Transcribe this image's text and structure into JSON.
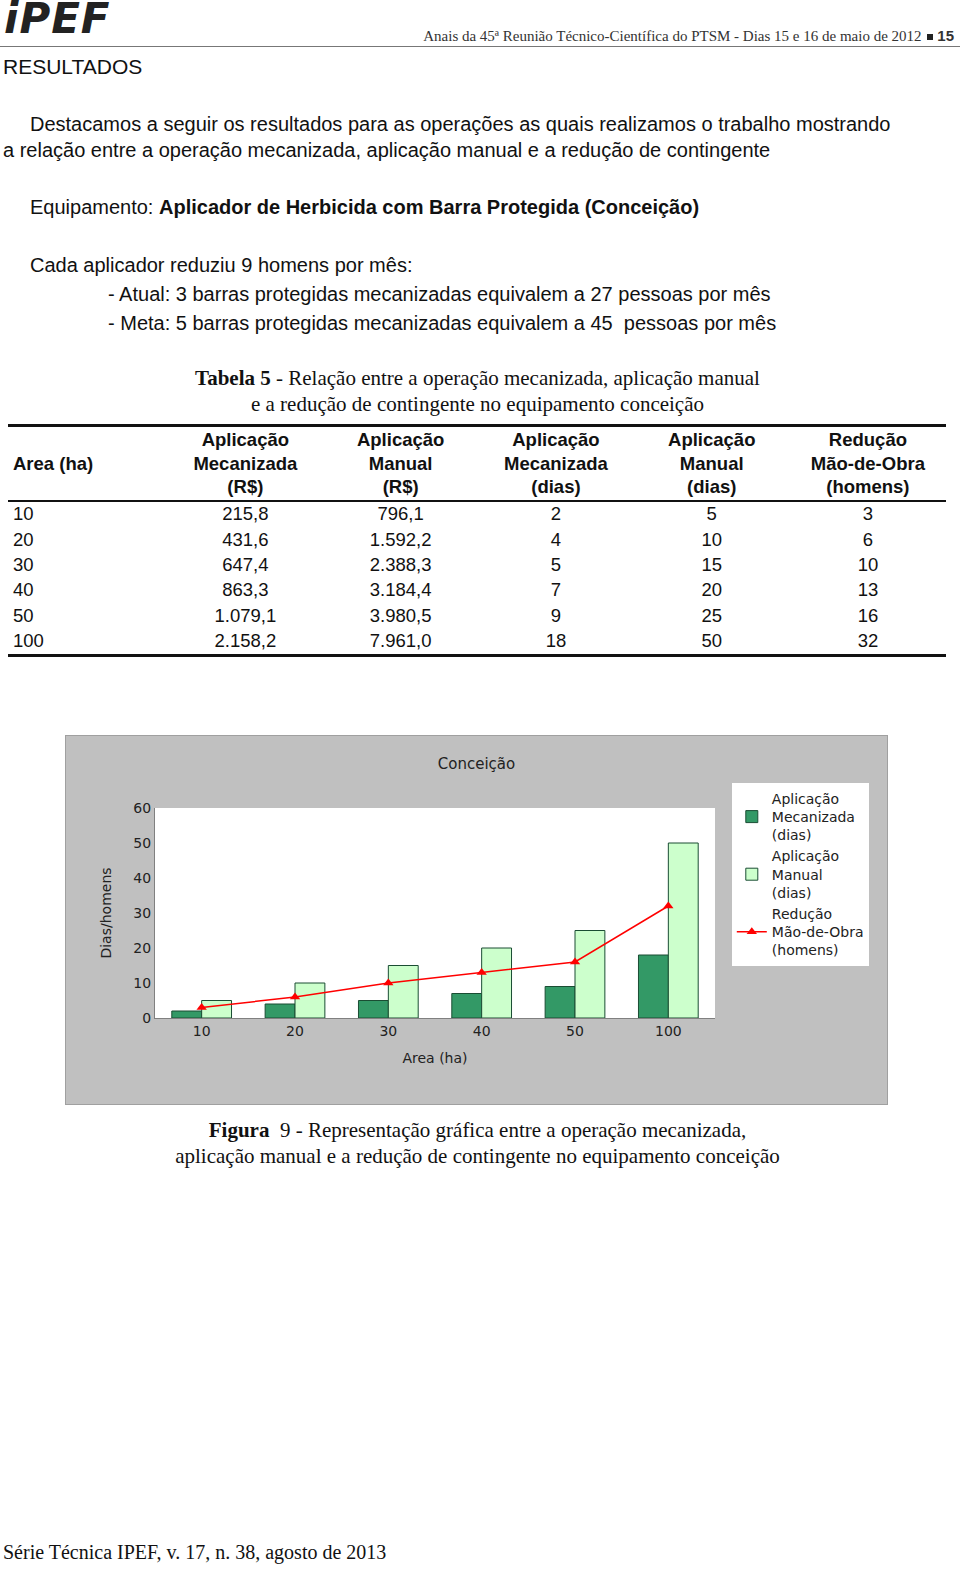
{
  "header": {
    "logo": "iPEF",
    "text": "Anais da 45ª Reunião Técnico-Científica do PTSM - Dias 15 e 16 de maio de 2012",
    "page": "15"
  },
  "section": "RESULTADOS",
  "intro": [
    "Destacamos a seguir os resultados para as operações as quais realizamos o trabalho mostrando",
    "a relação entre a operação mecanizada, aplicação manual e a redução de contingente"
  ],
  "equipment": {
    "label": "Equipamento:",
    "value": "Aplicador de Herbicida com Barra Protegida (Conceição)"
  },
  "summary": {
    "text": "Cada aplicador reduziu 9 homens por mês:",
    "items": [
      "- Atual: 3 barras protegidas mecanizadas equivalem a 27 pessoas por mês",
      "- Meta: 5 barras protegidas mecanizadas equivalem a 45  pessoas por mês"
    ]
  },
  "table": {
    "caption": {
      "label": "Tabela 5",
      "lines": [
        "- Relação entre a operação mecanizada, aplicação manual",
        "e a redução de contingente no equipamento conceição"
      ]
    },
    "header": [
      [
        "Area (ha)"
      ],
      [
        "Aplicação",
        "Mecanizada",
        "(R$)"
      ],
      [
        "Aplicação",
        "Manual",
        "(R$)"
      ],
      [
        "Aplicação",
        "Mecanizada",
        "(dias)"
      ],
      [
        "Aplicação",
        "Manual",
        "(dias)"
      ],
      [
        "Redução",
        "Mão-de-Obra",
        "(homens)"
      ]
    ],
    "rows": [
      [
        "10",
        "215,8",
        "796,1",
        "2",
        "5",
        "3"
      ],
      [
        "20",
        "431,6",
        "1.592,2",
        "4",
        "10",
        "6"
      ],
      [
        "30",
        "647,4",
        "2.388,3",
        "5",
        "15",
        "10"
      ],
      [
        "40",
        "863,3",
        "3.184,4",
        "7",
        "20",
        "13"
      ],
      [
        "50",
        "1.079,1",
        "3.980,5",
        "9",
        "25",
        "16"
      ],
      [
        "100",
        "2.158,2",
        "7.961,0",
        "18",
        "50",
        "32"
      ]
    ]
  },
  "chart_data": {
    "type": "bar",
    "title": "Conceição",
    "x_label": "Area (ha)",
    "y_label": "Dias/homens",
    "categories": [
      "10",
      "20",
      "30",
      "40",
      "50",
      "100"
    ],
    "series": [
      {
        "name": "Aplicação Mecanizada (dias)",
        "type": "bar",
        "color": "#339966",
        "values": [
          2,
          4,
          5,
          7,
          9,
          18
        ]
      },
      {
        "name": "Aplicação Manual (dias)",
        "type": "bar",
        "color": "#ccffcc",
        "values": [
          5,
          10,
          15,
          20,
          25,
          50
        ]
      },
      {
        "name": "Redução Mão-de-Obra (homens)",
        "type": "line",
        "color": "#ff0000",
        "marker": "triangle-up",
        "values": [
          3,
          6,
          10,
          13,
          16,
          32
        ]
      }
    ],
    "ylim": [
      0,
      60
    ],
    "yticks": [
      0,
      10,
      20,
      30,
      40,
      50,
      60
    ],
    "grid": false,
    "legend": "right"
  },
  "figure_caption": {
    "label": "Figura",
    "lines": [
      "9 - Representação gráfica entre a operação mecanizada,",
      "aplicação manual e a redução de contingente no equipamento conceição"
    ]
  },
  "footer": "Série Técnica IPEF, v. 17, n. 38, agosto de 2013"
}
